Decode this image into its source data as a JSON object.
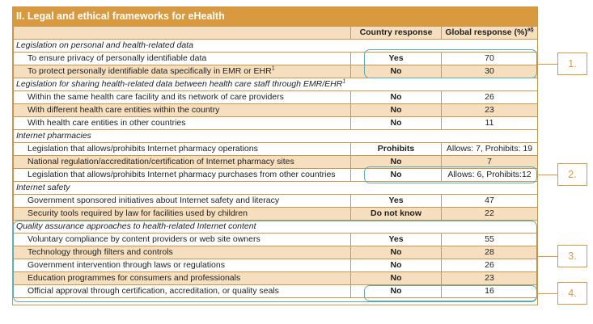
{
  "title": "II. Legal and ethical frameworks for eHealth",
  "header": {
    "col1": "",
    "col2": "Country response",
    "col3": "Global response (%)",
    "col3_sup": "a§"
  },
  "rows": [
    {
      "type": "section",
      "label": "Legislation on personal and health-related data",
      "sup": ""
    },
    {
      "type": "item",
      "label": "To ensure privacy of personally identifiable data",
      "sup": "",
      "country": "Yes",
      "global": "70"
    },
    {
      "type": "item",
      "label": "To protect personally identifiable data specifically in EMR or EHR",
      "sup": "1",
      "country": "No",
      "global": "30"
    },
    {
      "type": "section",
      "label": "Legislation for sharing health-related data between health care staff through EMR/EHR",
      "sup": "1"
    },
    {
      "type": "item",
      "label": "Within the same health care facility and its network of care providers",
      "sup": "",
      "country": "No",
      "global": "26"
    },
    {
      "type": "item",
      "label": "With different health care entities within the country",
      "sup": "",
      "country": "No",
      "global": "23"
    },
    {
      "type": "item",
      "label": "With health care entities in other countries",
      "sup": "",
      "country": "No",
      "global": "11"
    },
    {
      "type": "section",
      "label": "Internet pharmacies",
      "sup": ""
    },
    {
      "type": "item",
      "label": "Legislation that allows/prohibits Internet pharmacy operations",
      "sup": "",
      "country": "Prohibits",
      "global": "Allows: 7, Prohibits: 19"
    },
    {
      "type": "item",
      "label": "National regulation/accreditation/certification of Internet pharmacy sites",
      "sup": "",
      "country": "No",
      "global": "7"
    },
    {
      "type": "item",
      "label": "Legislation that allows/prohibits Internet pharmacy purchases from other countries",
      "sup": "",
      "country": "No",
      "global": "Allows: 6, Prohibits:12"
    },
    {
      "type": "section",
      "label": "Internet safety",
      "sup": ""
    },
    {
      "type": "item",
      "label": "Government sponsored initiatives about Internet safety and literacy",
      "sup": "",
      "country": "Yes",
      "global": "47"
    },
    {
      "type": "item",
      "label": "Security tools required by law for facilities used by children",
      "sup": "",
      "country": "Do not know",
      "global": "22"
    },
    {
      "type": "section",
      "label": "Quality assurance approaches to health-related Internet content",
      "sup": ""
    },
    {
      "type": "item",
      "label": "Voluntary compliance by content providers or web site owners",
      "sup": "",
      "country": "Yes",
      "global": "55"
    },
    {
      "type": "item",
      "label": "Technology through filters and controls",
      "sup": "",
      "country": "No",
      "global": "28"
    },
    {
      "type": "item",
      "label": "Government intervention through laws or regulations",
      "sup": "",
      "country": "No",
      "global": "26"
    },
    {
      "type": "item",
      "label": "Education programmes for consumers and professionals",
      "sup": "",
      "country": "No",
      "global": "23"
    },
    {
      "type": "item",
      "label": "Official approval through certification, accreditation, or quality seals",
      "sup": "",
      "country": "No",
      "global": "16"
    }
  ],
  "callouts": [
    "1.",
    "2.",
    "3.",
    "4."
  ],
  "colors": {
    "accent": "#d99a3f",
    "band": "#f6dfbf",
    "highlight": "#5fa9b4"
  }
}
